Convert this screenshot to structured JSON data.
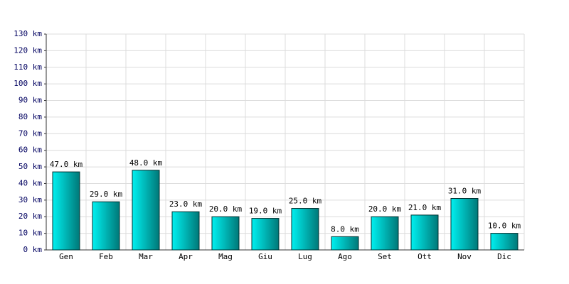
{
  "chart_data": {
    "type": "bar",
    "categories": [
      "Gen",
      "Feb",
      "Mar",
      "Apr",
      "Mag",
      "Giu",
      "Lug",
      "Ago",
      "Set",
      "Ott",
      "Nov",
      "Dic"
    ],
    "values": [
      47,
      29,
      48,
      23,
      20,
      19,
      25,
      8,
      20,
      21,
      31,
      10
    ],
    "value_labels": [
      "47.0 km",
      "29.0 km",
      "48.0 km",
      "23.0 km",
      "20.0 km",
      "19.0 km",
      "25.0 km",
      "8.0 km",
      "20.0 km",
      "21.0 km",
      "31.0 km",
      "10.0 km"
    ],
    "color": "#00c8c8",
    "ylim": [
      0,
      130
    ],
    "yticks": [
      {
        "value": 0,
        "label": "0 km"
      },
      {
        "value": 10,
        "label": "10 km"
      },
      {
        "value": 20,
        "label": "20 km"
      },
      {
        "value": 30,
        "label": "30 km"
      },
      {
        "value": 40,
        "label": "40 km"
      },
      {
        "value": 50,
        "label": "50 km"
      },
      {
        "value": 60,
        "label": "60 km"
      },
      {
        "value": 70,
        "label": "70 km"
      },
      {
        "value": 80,
        "label": "80 km"
      },
      {
        "value": 90,
        "label": "90 km"
      },
      {
        "value": 100,
        "label": "100 km"
      },
      {
        "value": 110,
        "label": "110 km"
      },
      {
        "value": 120,
        "label": "120 km"
      },
      {
        "value": 130,
        "label": "130 km"
      }
    ],
    "grid": true
  }
}
